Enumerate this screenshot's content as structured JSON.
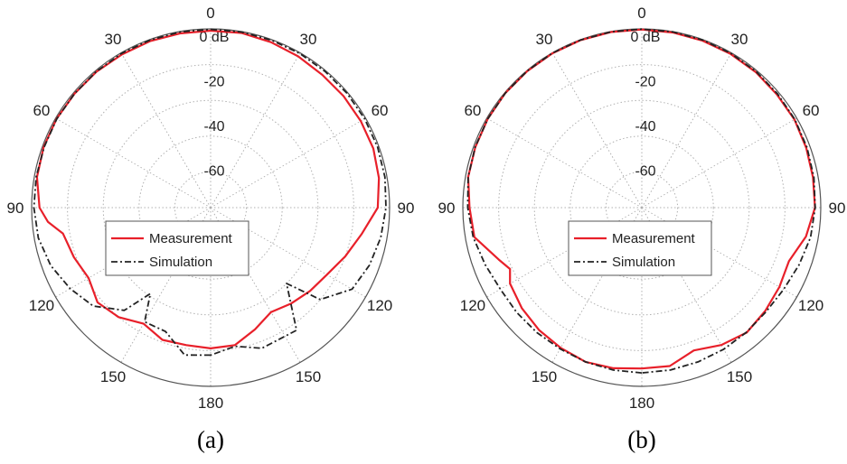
{
  "chart_data": [
    {
      "id": "a",
      "type": "polar-line",
      "caption": "(a)",
      "radial_unit": "dB",
      "radial_range": [
        -80,
        0
      ],
      "radial_ticks": [
        {
          "value": 0,
          "label": "0 dB"
        },
        {
          "value": -20,
          "label": "-20"
        },
        {
          "value": -40,
          "label": "-40"
        },
        {
          "value": -60,
          "label": "-60"
        }
      ],
      "angle_labels": [
        {
          "angle": 0,
          "label": "0"
        },
        {
          "angle": -30,
          "label": "30"
        },
        {
          "angle": 30,
          "label": "30"
        },
        {
          "angle": -60,
          "label": "60"
        },
        {
          "angle": 60,
          "label": "60"
        },
        {
          "angle": -90,
          "label": "90"
        },
        {
          "angle": 90,
          "label": "90"
        },
        {
          "angle": -120,
          "label": "120"
        },
        {
          "angle": 120,
          "label": "120"
        },
        {
          "angle": -150,
          "label": "150"
        },
        {
          "angle": 150,
          "label": "150"
        },
        {
          "angle": 180,
          "label": "180"
        }
      ],
      "legend": [
        "Measurement",
        "Simulation"
      ],
      "series": [
        {
          "name": "Measurement",
          "color": "#e8202a",
          "style": "solid",
          "points": [
            [
              -180,
              -17
            ],
            [
              -170,
              -17.5
            ],
            [
              -160,
              -17
            ],
            [
              -150,
              -20
            ],
            [
              -140,
              -16
            ],
            [
              -130,
              -14
            ],
            [
              -120,
              -17
            ],
            [
              -110,
              -15
            ],
            [
              -100,
              -13
            ],
            [
              -95,
              -7
            ],
            [
              -90,
              -3.5
            ],
            [
              -80,
              -1.2
            ],
            [
              -70,
              -0.6
            ],
            [
              -60,
              -0.5
            ],
            [
              -50,
              -0.6
            ],
            [
              -40,
              -0.6
            ],
            [
              -30,
              -0.8
            ],
            [
              -20,
              -0.7
            ],
            [
              -10,
              -0.8
            ],
            [
              0,
              -0.8
            ],
            [
              10,
              -0.6
            ],
            [
              20,
              -1.2
            ],
            [
              30,
              -1.8
            ],
            [
              40,
              -2.4
            ],
            [
              50,
              -2.4
            ],
            [
              60,
              -2.5
            ],
            [
              70,
              -2.6
            ],
            [
              80,
              -3.6
            ],
            [
              90,
              -5.3
            ],
            [
              100,
              -11.5
            ],
            [
              110,
              -16
            ],
            [
              120,
              -20
            ],
            [
              130,
              -22
            ],
            [
              140,
              -24
            ],
            [
              150,
              -26
            ],
            [
              160,
              -22
            ],
            [
              170,
              -17.5
            ],
            [
              180,
              -17
            ]
          ]
        },
        {
          "name": "Simulation",
          "color": "#222222",
          "style": "dashdot",
          "points": [
            [
              -180,
              -14
            ],
            [
              -170,
              -13
            ],
            [
              -160,
              -21
            ],
            [
              -150,
              -21
            ],
            [
              -145,
              -33
            ],
            [
              -140,
              -20
            ],
            [
              -130,
              -11.5
            ],
            [
              -120,
              -7.5
            ],
            [
              -110,
              -4
            ],
            [
              -100,
              -1.8
            ],
            [
              -90,
              -1
            ],
            [
              -80,
              -0.8
            ],
            [
              -70,
              -0.8
            ],
            [
              -60,
              -0.6
            ],
            [
              -50,
              -0.6
            ],
            [
              -40,
              -0.5
            ],
            [
              -30,
              -0.3
            ],
            [
              -20,
              -0.3
            ],
            [
              -10,
              -0.2
            ],
            [
              0,
              -0.2
            ],
            [
              10,
              -0.2
            ],
            [
              20,
              -0.3
            ],
            [
              30,
              -0.3
            ],
            [
              40,
              -0.4
            ],
            [
              50,
              -0.4
            ],
            [
              60,
              -0.5
            ],
            [
              70,
              -0.6
            ],
            [
              80,
              -0.9
            ],
            [
              90,
              -1.6
            ],
            [
              100,
              -2.8
            ],
            [
              110,
              -4.5
            ],
            [
              120,
              -7
            ],
            [
              130,
              -16
            ],
            [
              135,
              -32
            ],
            [
              145,
              -13
            ],
            [
              160,
              -13
            ],
            [
              170,
              -17
            ],
            [
              180,
              -14
            ]
          ]
        }
      ]
    },
    {
      "id": "b",
      "type": "polar-line",
      "caption": "(b)",
      "radial_unit": "dB",
      "radial_range": [
        -80,
        0
      ],
      "radial_ticks": [
        {
          "value": 0,
          "label": "0 dB"
        },
        {
          "value": -20,
          "label": "-20"
        },
        {
          "value": -40,
          "label": "-40"
        },
        {
          "value": -60,
          "label": "-60"
        }
      ],
      "angle_labels": [
        {
          "angle": 0,
          "label": "0"
        },
        {
          "angle": -30,
          "label": "30"
        },
        {
          "angle": 30,
          "label": "30"
        },
        {
          "angle": -60,
          "label": "60"
        },
        {
          "angle": 60,
          "label": "60"
        },
        {
          "angle": -90,
          "label": "90"
        },
        {
          "angle": 90,
          "label": "90"
        },
        {
          "angle": -120,
          "label": "120"
        },
        {
          "angle": 120,
          "label": "120"
        },
        {
          "angle": -150,
          "label": "150"
        },
        {
          "angle": 150,
          "label": "150"
        },
        {
          "angle": 180,
          "label": "180"
        }
      ],
      "legend": [
        "Measurement",
        "Simulation"
      ],
      "series": [
        {
          "name": "Measurement",
          "color": "#e8202a",
          "style": "solid",
          "points": [
            [
              -180,
              -8
            ],
            [
              -170,
              -7
            ],
            [
              -160,
              -6.5
            ],
            [
              -150,
              -7.5
            ],
            [
              -140,
              -8.5
            ],
            [
              -130,
              -10
            ],
            [
              -120,
              -12
            ],
            [
              -115,
              -15
            ],
            [
              -110,
              -12
            ],
            [
              -100,
              -4
            ],
            [
              -90,
              -3
            ],
            [
              -80,
              -1.2
            ],
            [
              -70,
              -0.8
            ],
            [
              -60,
              -0.5
            ],
            [
              -50,
              -0.3
            ],
            [
              -40,
              -0.3
            ],
            [
              -30,
              -0.2
            ],
            [
              -20,
              -0.2
            ],
            [
              -10,
              -0.2
            ],
            [
              0,
              -0.3
            ],
            [
              10,
              -0.4
            ],
            [
              20,
              -0.5
            ],
            [
              30,
              -0.6
            ],
            [
              40,
              -0.8
            ],
            [
              50,
              -1.2
            ],
            [
              60,
              -1.2
            ],
            [
              70,
              -1.8
            ],
            [
              80,
              -2.3
            ],
            [
              90,
              -2.6
            ],
            [
              100,
              -5.5
            ],
            [
              110,
              -10
            ],
            [
              120,
              -9
            ],
            [
              130,
              -8
            ],
            [
              140,
              -7
            ],
            [
              150,
              -9
            ],
            [
              160,
              -12
            ],
            [
              170,
              -8
            ],
            [
              180,
              -8
            ]
          ]
        },
        {
          "name": "Simulation",
          "color": "#222222",
          "style": "dashdot",
          "points": [
            [
              -180,
              -6
            ],
            [
              -170,
              -6.2
            ],
            [
              -160,
              -6.5
            ],
            [
              -150,
              -7
            ],
            [
              -140,
              -7
            ],
            [
              -130,
              -7
            ],
            [
              -120,
              -7
            ],
            [
              -110,
              -5.5
            ],
            [
              -100,
              -3.5
            ],
            [
              -90,
              -2.2
            ],
            [
              -80,
              -1.2
            ],
            [
              -70,
              -0.7
            ],
            [
              -60,
              -0.5
            ],
            [
              -50,
              -0.3
            ],
            [
              -40,
              -0.2
            ],
            [
              -30,
              -0.1
            ],
            [
              -20,
              -0.1
            ],
            [
              -10,
              -0.1
            ],
            [
              0,
              -0.1
            ],
            [
              10,
              -0.1
            ],
            [
              20,
              -0.2
            ],
            [
              30,
              -0.3
            ],
            [
              40,
              -0.5
            ],
            [
              50,
              -0.8
            ],
            [
              60,
              -1
            ],
            [
              70,
              -1.4
            ],
            [
              80,
              -1.9
            ],
            [
              90,
              -2.5
            ],
            [
              100,
              -3.4
            ],
            [
              110,
              -5.2
            ],
            [
              120,
              -6.8
            ],
            [
              130,
              -7.5
            ],
            [
              140,
              -7.2
            ],
            [
              150,
              -6.8
            ],
            [
              160,
              -6.5
            ],
            [
              170,
              -6.2
            ],
            [
              180,
              -6
            ]
          ]
        }
      ]
    }
  ]
}
